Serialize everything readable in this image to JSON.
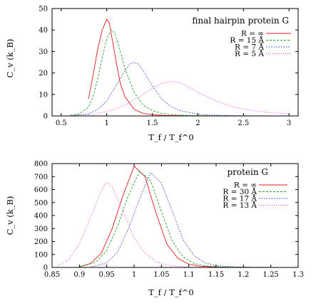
{
  "chart_data": [
    {
      "type": "line",
      "title": "final hairpin protein G",
      "xlabel": "T_f / T_f^0",
      "ylabel": "C_v (k_B)",
      "xlim": [
        0.4,
        3.1
      ],
      "ylim": [
        0,
        50
      ],
      "xticks": [
        "0.5",
        "1",
        "1.5",
        "2",
        "2.5",
        "3"
      ],
      "yticks": [
        "0",
        "10",
        "20",
        "30",
        "40",
        "50"
      ],
      "legend_position": "top-right",
      "series": [
        {
          "name": "R = ∞",
          "color": "#e41a1c",
          "dash": "",
          "x": [
            0.8,
            0.85,
            0.9,
            0.95,
            1.0,
            1.03,
            1.05,
            1.1,
            1.15,
            1.2,
            1.3,
            1.4,
            1.5,
            1.6,
            1.8,
            2.0,
            2.3,
            2.6,
            3.0
          ],
          "y": [
            8,
            19,
            31,
            40,
            45,
            43,
            38,
            26,
            15,
            9,
            3,
            1.2,
            0.6,
            0.3,
            0.1,
            0.05,
            0.02,
            0.01,
            0
          ]
        },
        {
          "name": "R = 15 Å",
          "color": "#2ca02c",
          "dash": "3,2",
          "x": [
            0.6,
            0.7,
            0.8,
            0.85,
            0.9,
            0.95,
            1.0,
            1.05,
            1.08,
            1.1,
            1.15,
            1.2,
            1.3,
            1.4,
            1.5,
            1.6,
            1.8,
            2.0,
            2.4,
            3.0
          ],
          "y": [
            0.3,
            1,
            4,
            9,
            17,
            27,
            36,
            40,
            39,
            37,
            30,
            22,
            11,
            5,
            2.5,
            1.2,
            0.4,
            0.1,
            0.02,
            0
          ]
        },
        {
          "name": "R = 7 Å",
          "color": "#1f3fcf",
          "dash": "1.5,2",
          "x": [
            0.6,
            0.8,
            0.9,
            1.0,
            1.1,
            1.2,
            1.25,
            1.3,
            1.35,
            1.4,
            1.5,
            1.6,
            1.7,
            1.8,
            2.0,
            2.2,
            2.5,
            3.0
          ],
          "y": [
            0.1,
            1,
            3,
            7,
            14,
            21,
            24,
            25,
            24,
            21,
            14,
            8,
            4.5,
            2.5,
            0.8,
            0.3,
            0.1,
            0
          ]
        },
        {
          "name": "R = 5 Å",
          "color": "#e040e0",
          "dash": "1,2",
          "x": [
            0.6,
            0.8,
            1.0,
            1.2,
            1.4,
            1.5,
            1.6,
            1.7,
            1.75,
            1.8,
            1.9,
            2.0,
            2.2,
            2.4,
            2.6,
            2.8,
            3.0
          ],
          "y": [
            0.1,
            0.5,
            2,
            5,
            10,
            13,
            15,
            16,
            16,
            15.5,
            13.5,
            11,
            7,
            4,
            2.5,
            1.5,
            1
          ]
        }
      ]
    },
    {
      "type": "line",
      "title": "protein G",
      "xlabel": "T_f / T_f^0",
      "ylabel": "C_v (k_B)",
      "xlim": [
        0.85,
        1.3
      ],
      "ylim": [
        0,
        800
      ],
      "xticks": [
        "0.85",
        "0.9",
        "0.95",
        "1",
        "1.05",
        "1.1",
        "1.15",
        "1.2",
        "1.25",
        "1.3"
      ],
      "yticks": [
        "0",
        "100",
        "200",
        "300",
        "400",
        "500",
        "600",
        "700",
        "800"
      ],
      "legend_position": "top-right",
      "series": [
        {
          "name": "R = ∞",
          "color": "#e41a1c",
          "dash": "",
          "x": [
            0.9,
            0.92,
            0.94,
            0.96,
            0.98,
            1.0,
            1.02,
            1.04,
            1.06,
            1.08,
            1.1,
            1.12,
            1.15,
            1.2,
            1.3
          ],
          "y": [
            5,
            30,
            110,
            300,
            560,
            780,
            700,
            420,
            180,
            70,
            25,
            10,
            3,
            1,
            0
          ]
        },
        {
          "name": "R = 30 Å",
          "color": "#2ca02c",
          "dash": "3,2",
          "x": [
            0.9,
            0.93,
            0.95,
            0.97,
            0.99,
            1.01,
            1.03,
            1.05,
            1.07,
            1.09,
            1.11,
            1.13,
            1.16,
            1.2,
            1.3
          ],
          "y": [
            3,
            40,
            130,
            320,
            560,
            740,
            670,
            430,
            200,
            80,
            30,
            12,
            4,
            1,
            0
          ]
        },
        {
          "name": "R = 17 Å",
          "color": "#1f3fcf",
          "dash": "1.5,2",
          "x": [
            0.92,
            0.95,
            0.97,
            0.99,
            1.01,
            1.03,
            1.05,
            1.07,
            1.09,
            1.11,
            1.13,
            1.15,
            1.18,
            1.22,
            1.3
          ],
          "y": [
            3,
            35,
            120,
            300,
            530,
            730,
            650,
            430,
            210,
            90,
            35,
            14,
            5,
            1,
            0
          ]
        },
        {
          "name": "R = 13 Å",
          "color": "#e040e0",
          "dash": "1,2",
          "x": [
            0.86,
            0.88,
            0.9,
            0.92,
            0.94,
            0.95,
            0.96,
            0.98,
            1.0,
            1.02,
            1.04,
            1.06,
            1.08,
            1.1,
            1.15,
            1.2
          ],
          "y": [
            10,
            60,
            180,
            380,
            590,
            660,
            620,
            430,
            230,
            110,
            45,
            18,
            8,
            3,
            1,
            0
          ]
        }
      ]
    }
  ]
}
